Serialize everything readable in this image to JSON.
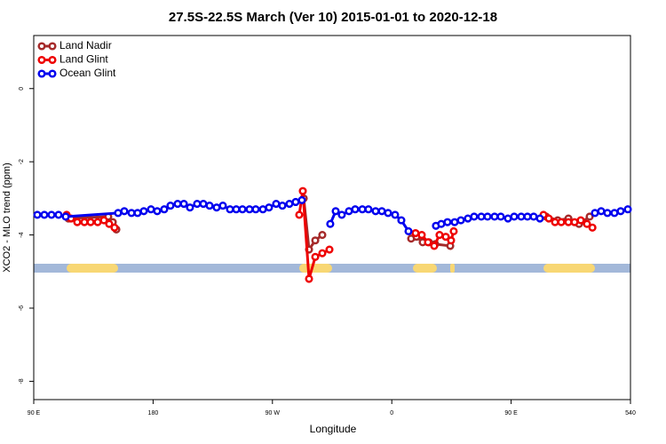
{
  "chart_data": {
    "type": "line",
    "title": "27.5S-22.5S March (Ver 10)   2015-01-01 to 2020-12-18",
    "x_label": "Longitude",
    "y_label": "XCO2 - MLO trend (ppm)",
    "xlim": [
      90,
      540
    ],
    "ylim": [
      -8.5,
      1.45
    ],
    "xticks": [
      {
        "value": 90,
        "label": "90 E"
      },
      180,
      {
        "value": 270,
        "label": "90 W"
      },
      {
        "value": 360,
        "label": "0"
      },
      {
        "value": 450,
        "label": "90 E"
      },
      540
    ],
    "yticks": [
      0,
      -2,
      -4,
      -6,
      -8
    ],
    "legend": "top-left",
    "series": [
      {
        "name": "Land Nadir",
        "color": "#a52a2a",
        "x": [
          116.1,
          146.2,
          149.6,
          152.3,
          null,
          293.6,
          297.6,
          302.3,
          307.6,
          null,
          374.6,
          378.6,
          383.3,
          388.0,
          392.7,
          404.1,
          null,
          476.4,
          485.1,
          493.2,
          501.2,
          509.2
        ],
        "values": [
          -3.55,
          -3.5,
          -3.65,
          -3.85,
          null,
          -3.0,
          -4.4,
          -4.15,
          -4.0,
          null,
          -4.1,
          -4.05,
          -4.2,
          -4.2,
          -4.25,
          -4.3,
          null,
          -3.5,
          -3.6,
          -3.55,
          -3.7,
          -3.5
        ]
      },
      {
        "name": "Land Glint",
        "color": "#ee0000",
        "x": [
          114.8,
          118.1,
          122.8,
          128.2,
          132.9,
          138.2,
          142.9,
          146.9,
          150.9,
          null,
          290.2,
          292.9,
          297.6,
          302.3,
          307.6,
          313.0,
          null,
          377.9,
          382.6,
          387.3,
          392.0,
          396.0,
          400.7,
          404.7,
          406.7,
          null,
          474.4,
          478.4,
          483.1,
          487.8,
          493.2,
          497.8,
          502.5,
          507.2,
          511.3
        ],
        "values": [
          -3.45,
          -3.55,
          -3.65,
          -3.65,
          -3.65,
          -3.65,
          -3.6,
          -3.7,
          -3.8,
          null,
          -3.45,
          -2.8,
          -5.2,
          -4.6,
          -4.5,
          -4.4,
          null,
          -3.95,
          -4.0,
          -4.2,
          -4.3,
          -4.0,
          -4.05,
          -4.15,
          -3.9,
          null,
          -3.45,
          -3.55,
          -3.65,
          -3.65,
          -3.65,
          -3.65,
          -3.6,
          -3.7,
          -3.8
        ]
      },
      {
        "name": "Ocean Glint",
        "color": "#0000ee",
        "x": [
          92.7,
          98.0,
          103.4,
          108.7,
          114.1,
          153.6,
          158.3,
          163.7,
          168.3,
          173.0,
          178.4,
          183.1,
          188.4,
          193.1,
          198.5,
          203.2,
          207.8,
          213.2,
          217.9,
          222.6,
          227.9,
          232.6,
          238.0,
          242.7,
          247.4,
          252.7,
          257.4,
          262.8,
          267.4,
          272.8,
          277.5,
          282.8,
          287.5,
          292.2,
          null,
          313.6,
          317.7,
          322.3,
          327.7,
          332.4,
          337.8,
          342.4,
          347.8,
          352.5,
          357.2,
          362.5,
          367.2,
          372.6,
          null,
          393.3,
          397.3,
          402.0,
          407.4,
          412.1,
          417.4,
          422.1,
          427.5,
          432.2,
          437.5,
          442.2,
          447.6,
          452.3,
          457.6,
          462.3,
          467.0,
          471.7,
          null,
          513.2,
          517.9,
          522.6,
          527.9,
          532.6,
          538.0
        ],
        "values": [
          -3.45,
          -3.45,
          -3.45,
          -3.45,
          -3.5,
          -3.4,
          -3.35,
          -3.4,
          -3.4,
          -3.35,
          -3.3,
          -3.35,
          -3.3,
          -3.2,
          -3.15,
          -3.15,
          -3.25,
          -3.15,
          -3.15,
          -3.2,
          -3.25,
          -3.2,
          -3.3,
          -3.3,
          -3.3,
          -3.3,
          -3.3,
          -3.3,
          -3.25,
          -3.15,
          -3.2,
          -3.15,
          -3.1,
          -3.05,
          null,
          -3.7,
          -3.35,
          -3.45,
          -3.35,
          -3.3,
          -3.3,
          -3.3,
          -3.35,
          -3.35,
          -3.4,
          -3.45,
          -3.6,
          -3.9,
          null,
          -3.75,
          -3.7,
          -3.65,
          -3.65,
          -3.6,
          -3.55,
          -3.5,
          -3.5,
          -3.5,
          -3.5,
          -3.5,
          -3.55,
          -3.5,
          -3.5,
          -3.5,
          -3.5,
          -3.55,
          null,
          -3.4,
          -3.35,
          -3.4,
          -3.4,
          -3.35,
          -3.3
        ]
      }
    ]
  }
}
